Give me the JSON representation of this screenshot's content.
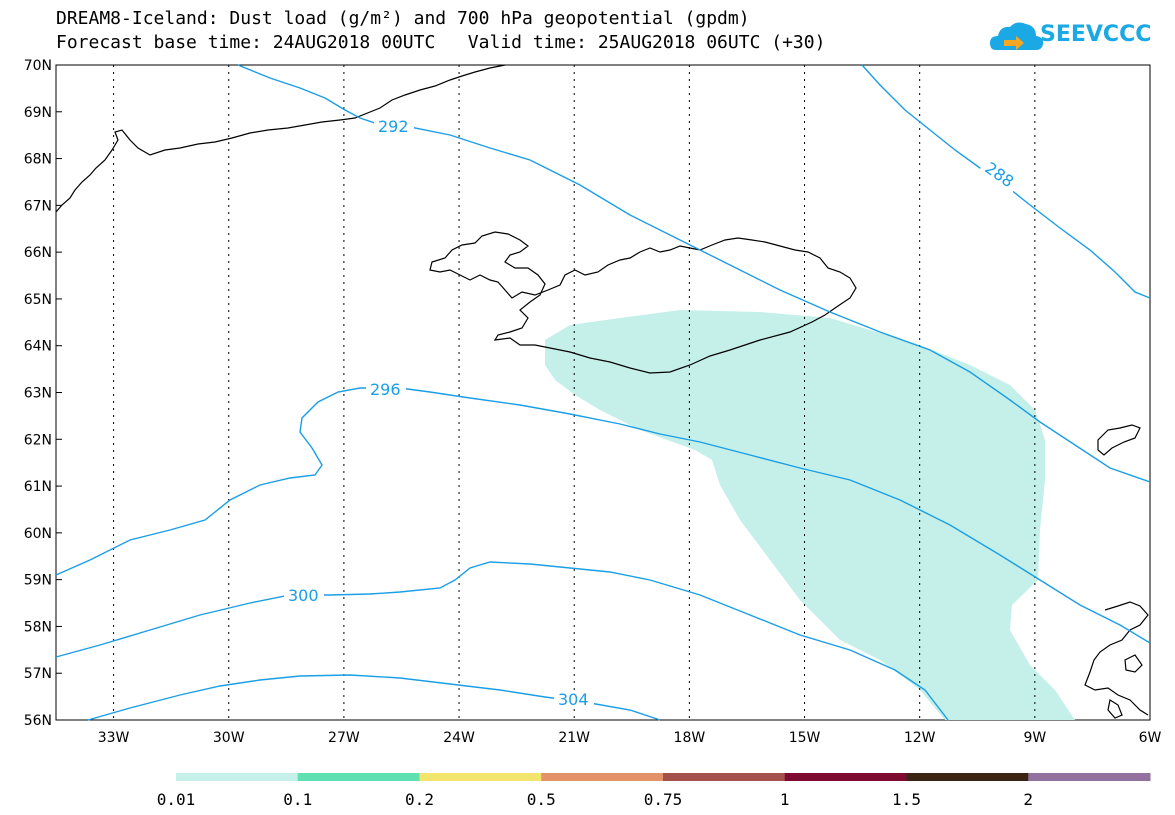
{
  "header": {
    "line1": "DREAM8-Iceland: Dust load (g/m²) and 700 hPa geopotential (gpdm)",
    "line2": "Forecast base time: 24AUG2018 00UTC   Valid time: 25AUG2018 06UTC (+30)"
  },
  "logo": {
    "text": "SEEVCCC",
    "color": "#1ba9e6"
  },
  "map": {
    "lat_range": [
      56,
      70
    ],
    "lon_range": [
      -34.5,
      -6
    ],
    "lat_labels": [
      "70N",
      "69N",
      "68N",
      "67N",
      "66N",
      "65N",
      "64N",
      "63N",
      "62N",
      "61N",
      "60N",
      "59N",
      "58N",
      "57N",
      "56N"
    ],
    "lon_labels": [
      "33W",
      "30W",
      "27W",
      "24W",
      "21W",
      "18W",
      "15W",
      "12W",
      "9W",
      "6W"
    ],
    "contour_color": "#1a9ee6",
    "contour_labels": [
      {
        "text": "292"
      },
      {
        "text": "288"
      },
      {
        "text": "296"
      },
      {
        "text": "300"
      },
      {
        "text": "304"
      }
    ],
    "dust_fill_color": "#c5f0ea"
  },
  "colorbar": {
    "colors": [
      "#c5f0ea",
      "#5ee0b3",
      "#f3e46e",
      "#e4926a",
      "#a3504a",
      "#7d0b2f",
      "#3b2414",
      "#92719e"
    ],
    "labels": [
      "0.01",
      "0.1",
      "0.2",
      "0.5",
      "0.75",
      "1",
      "1.5",
      "2"
    ]
  }
}
